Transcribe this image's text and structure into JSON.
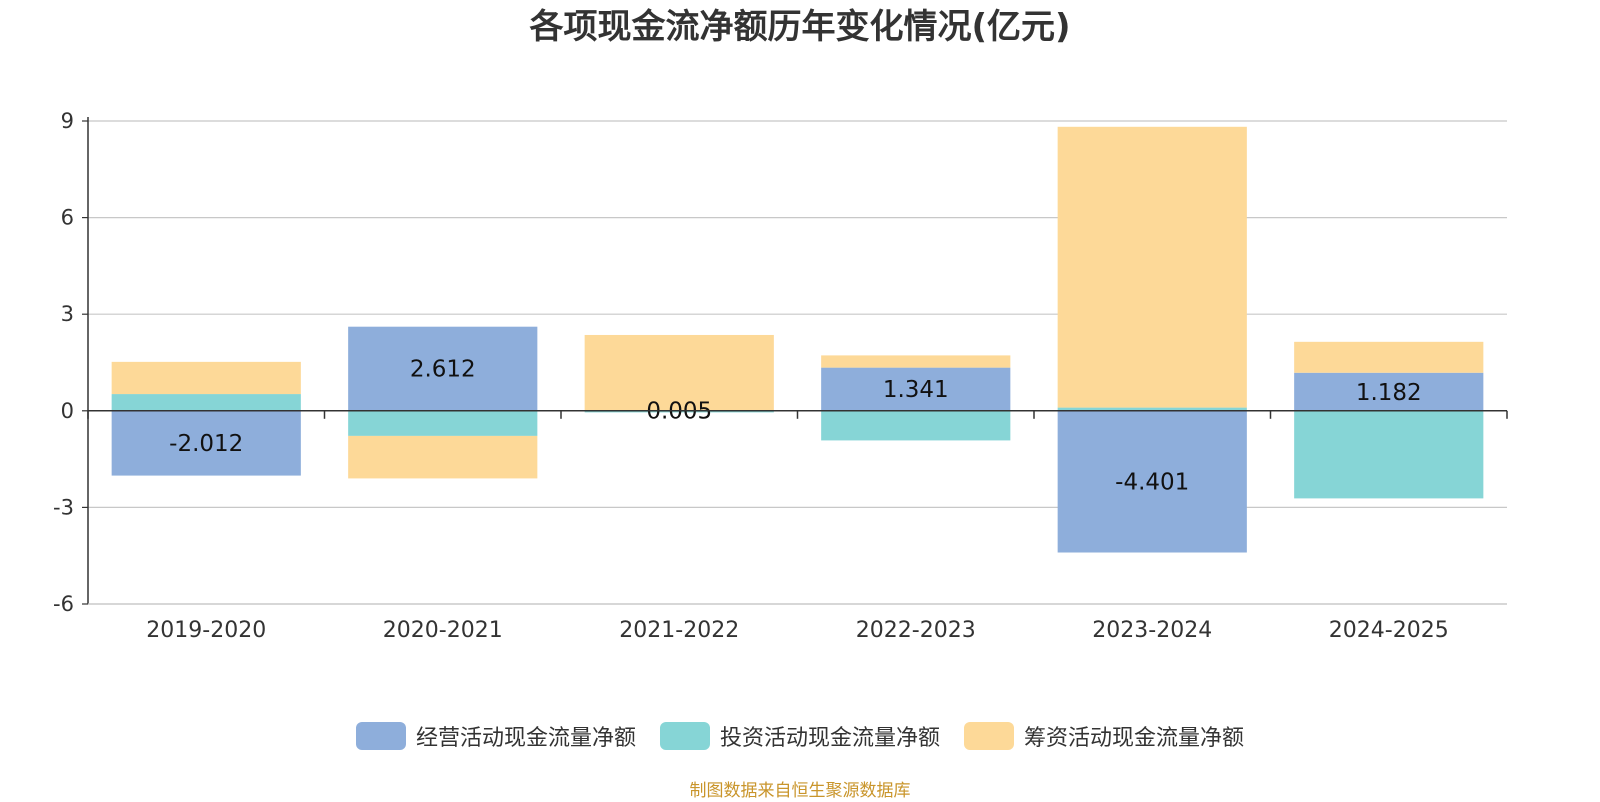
{
  "chart_data": {
    "type": "bar",
    "stacked": true,
    "title": "各项现金流净额历年变化情况(亿元)",
    "categories": [
      "2019-2020",
      "2020-2021",
      "2021-2022",
      "2022-2023",
      "2023-2024",
      "2024-2025"
    ],
    "series": [
      {
        "name": "经营活动现金流量净额",
        "color": "#8eaedb",
        "values": [
          -2.012,
          2.612,
          0.005,
          1.341,
          -4.401,
          1.182
        ],
        "labels": [
          "-2.012",
          "2.612",
          "0.005",
          "1.341",
          "-4.401",
          "1.182"
        ]
      },
      {
        "name": "投资活动现金流量净额",
        "color": "#86d5d6",
        "values": [
          0.52,
          -0.78,
          -0.05,
          -0.92,
          0.1,
          -2.72
        ]
      },
      {
        "name": "筹资活动现金流量净额",
        "color": "#fdd998",
        "values": [
          1.0,
          -1.32,
          2.35,
          0.38,
          8.72,
          0.96
        ]
      }
    ],
    "ylim": [
      -6,
      9
    ],
    "yticks": [
      -6,
      -3,
      0,
      3,
      6,
      9
    ],
    "grid": true,
    "legend_position": "bottom"
  },
  "footer": {
    "source": "制图数据来自恒生聚源数据库"
  }
}
